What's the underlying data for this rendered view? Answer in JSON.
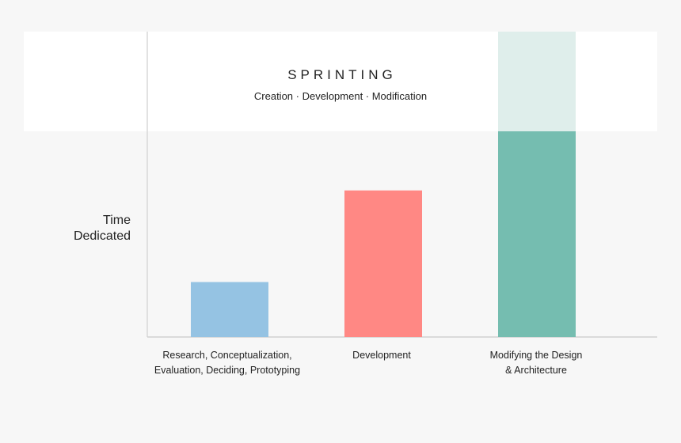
{
  "chart_data": {
    "type": "bar",
    "title": "SPRINTING",
    "subtitle": "Creation · Development · Modification",
    "ylabel": [
      "Time",
      "Dedicated"
    ],
    "xlabel": "",
    "categories": [
      [
        "Research, Conceptualization,",
        "Evaluation, Deciding, Prototyping"
      ],
      [
        "Development"
      ],
      [
        "Modifying the Design",
        "& Architecture"
      ]
    ],
    "values": [
      27,
      72,
      150
    ],
    "ylim": [
      0,
      150
    ],
    "colors": [
      "#95c3e3",
      "#ff8884",
      "#75bdb0"
    ],
    "highlight_color": "#dfeeeb",
    "grid": false,
    "legend": "none"
  }
}
